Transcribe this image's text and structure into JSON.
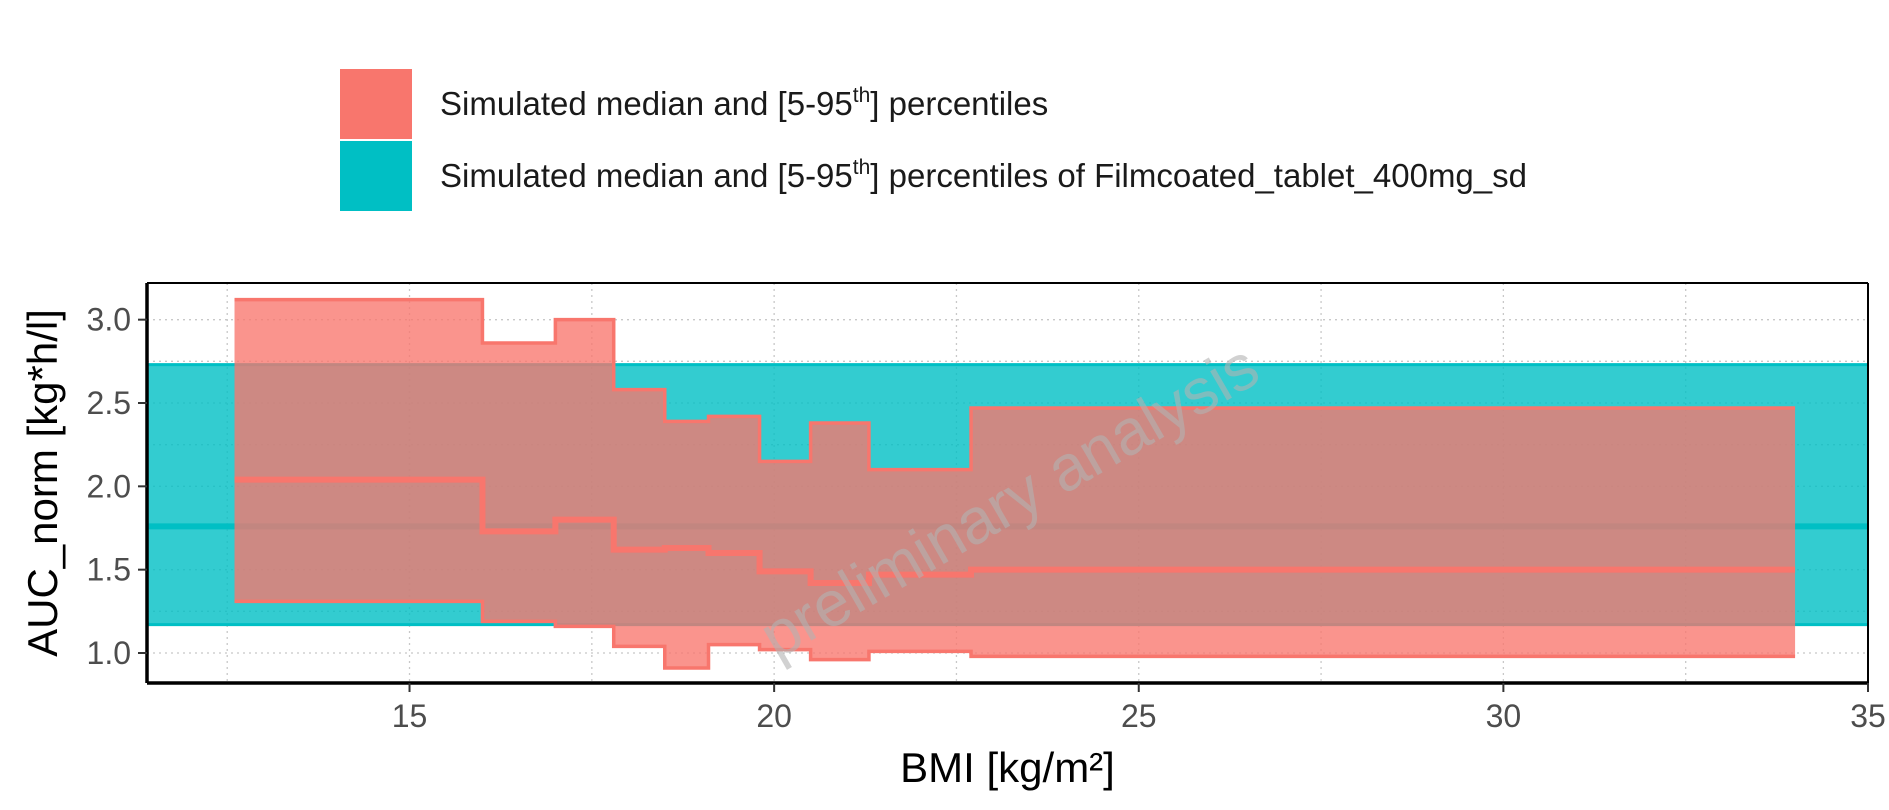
{
  "legend": {
    "items": [
      {
        "prefix": "Simulated median and [5-95",
        "sup": "th",
        "suffix": "] percentiles",
        "color": "#F8766D"
      },
      {
        "prefix": "Simulated median and [5-95",
        "sup": "th",
        "suffix": "] percentiles of Filmcoated_tablet_400mg_sd",
        "color": "#00BFC4"
      }
    ]
  },
  "watermark": "preliminary analysis",
  "chart_data": {
    "type": "area",
    "xlabel": "BMI [kg/m²]",
    "ylabel": "AUC_norm [kg*h/l]",
    "xlim": [
      11.4,
      35.0
    ],
    "ylim": [
      0.82,
      3.22
    ],
    "x_ticks": [
      15,
      20,
      25,
      30,
      35
    ],
    "y_ticks": [
      1.0,
      1.5,
      2.0,
      2.5,
      3.0
    ],
    "y_tick_labels": [
      "1.0",
      "1.5",
      "2.0",
      "2.5",
      "3.0"
    ],
    "grid": true,
    "legend_position": "top",
    "reference_band": {
      "name": "Simulated median and [5-95th] percentiles of Filmcoated_tablet_400mg_sd",
      "color": "#00BFC4",
      "x_range": [
        11.4,
        35.0
      ],
      "median": 1.76,
      "lower": 1.17,
      "upper": 2.73
    },
    "binned_series": {
      "name": "Simulated median and [5-95th] percentiles",
      "color": "#F8766D",
      "bins": [
        {
          "x0": 12.6,
          "x1": 16.0,
          "median": 2.04,
          "lower": 1.31,
          "upper": 3.12
        },
        {
          "x0": 16.0,
          "x1": 17.0,
          "median": 1.73,
          "lower": 1.19,
          "upper": 2.86
        },
        {
          "x0": 17.0,
          "x1": 17.8,
          "median": 1.8,
          "lower": 1.16,
          "upper": 3.0
        },
        {
          "x0": 17.8,
          "x1": 18.5,
          "median": 1.62,
          "lower": 1.04,
          "upper": 2.58
        },
        {
          "x0": 18.5,
          "x1": 19.1,
          "median": 1.63,
          "lower": 0.91,
          "upper": 2.39
        },
        {
          "x0": 19.1,
          "x1": 19.8,
          "median": 1.6,
          "lower": 1.05,
          "upper": 2.42
        },
        {
          "x0": 19.8,
          "x1": 20.5,
          "median": 1.49,
          "lower": 1.02,
          "upper": 2.15
        },
        {
          "x0": 20.5,
          "x1": 21.3,
          "median": 1.42,
          "lower": 0.96,
          "upper": 2.38
        },
        {
          "x0": 21.3,
          "x1": 22.7,
          "median": 1.47,
          "lower": 1.01,
          "upper": 2.1
        },
        {
          "x0": 22.7,
          "x1": 34.0,
          "median": 1.5,
          "lower": 0.98,
          "upper": 2.47
        }
      ]
    }
  }
}
